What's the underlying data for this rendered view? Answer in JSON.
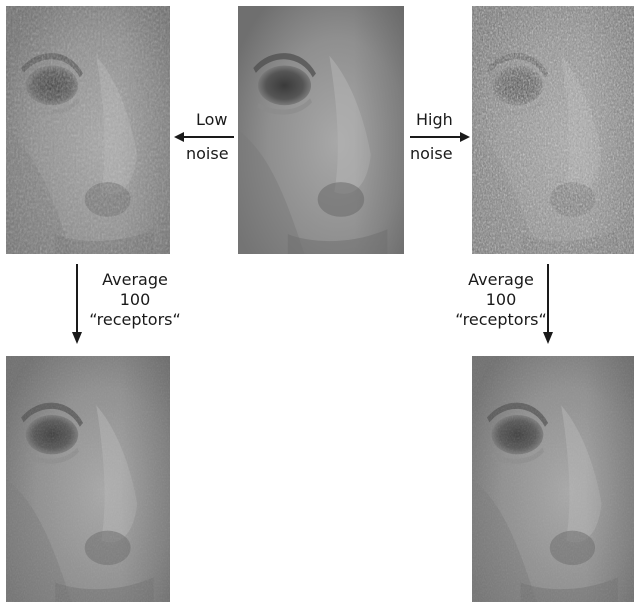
{
  "labels": {
    "low_noise": {
      "line1": "Low",
      "line2": "noise"
    },
    "high_noise": {
      "line1": "High",
      "line2": "noise"
    },
    "average_left": {
      "line1": "Average",
      "line2": "100",
      "line3": "“receptors“"
    },
    "average_right": {
      "line1": "Average",
      "line2": "100",
      "line3": "“receptors“"
    }
  },
  "panels": [
    {
      "id": "original",
      "description_name": "original-face"
    },
    {
      "id": "low-noise",
      "description_name": "low-noise-face"
    },
    {
      "id": "high-noise",
      "description_name": "high-noise-face"
    },
    {
      "id": "low-noise-averaged",
      "description_name": "low-noise-averaged-face"
    },
    {
      "id": "high-noise-averaged",
      "description_name": "high-noise-averaged-face"
    }
  ],
  "colors": {
    "arrow": "#1a1a1a",
    "panel_base": "#7c7c7c"
  }
}
